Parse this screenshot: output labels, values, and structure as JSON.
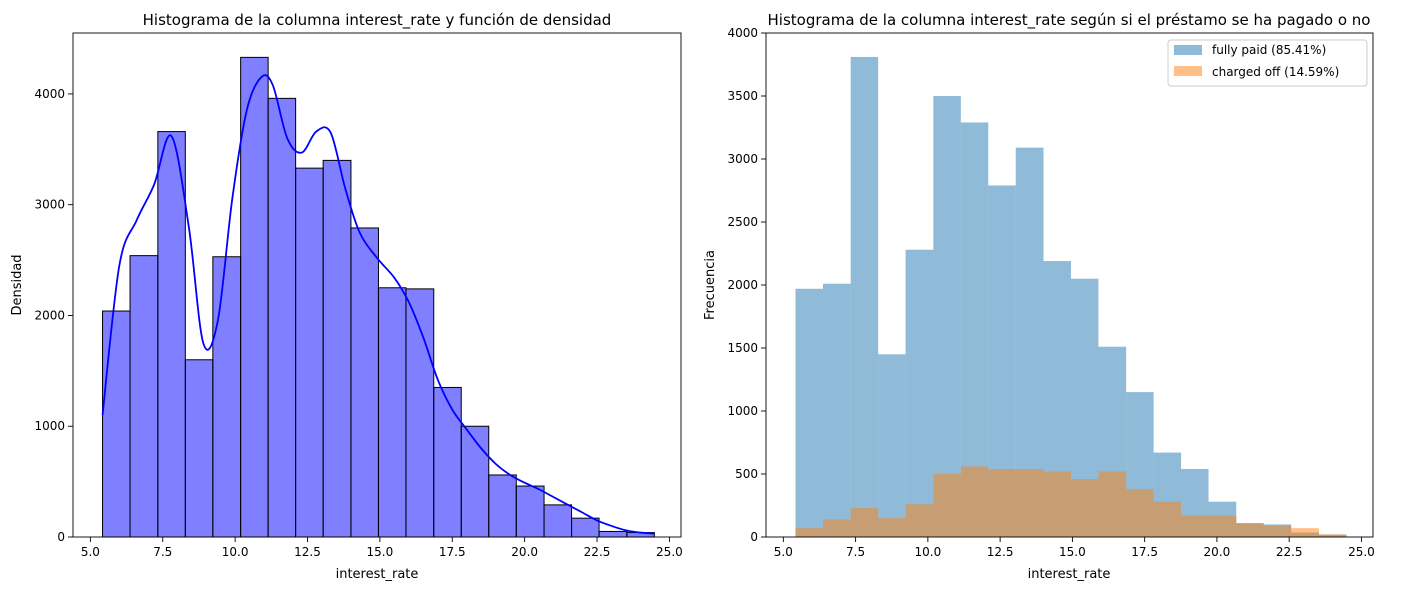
{
  "chart_data": [
    {
      "type": "bar",
      "title": "Histograma de la columna interest_rate y función de densidad",
      "xlabel": "interest_rate",
      "ylabel": "Densidad",
      "xlim": [
        4.4,
        25.4
      ],
      "ylim": [
        0,
        4550
      ],
      "xticks": [
        5.0,
        7.5,
        10.0,
        12.5,
        15.0,
        17.5,
        20.0,
        22.5,
        25.0
      ],
      "xtick_labels": [
        "5.0",
        "7.5",
        "10.0",
        "12.5",
        "15.0",
        "17.5",
        "20.0",
        "22.5",
        "25.0"
      ],
      "yticks": [
        0,
        1000,
        2000,
        3000,
        4000
      ],
      "ytick_labels": [
        "0",
        "1000",
        "2000",
        "3000",
        "4000"
      ],
      "grid": false,
      "bin_edges": [
        5.42,
        6.37,
        7.33,
        8.28,
        9.23,
        10.19,
        11.14,
        12.09,
        13.04,
        14.0,
        14.95,
        15.9,
        16.86,
        17.81,
        18.76,
        19.71,
        20.67,
        21.62,
        22.57,
        23.53,
        24.48
      ],
      "values": [
        2040,
        2540,
        3660,
        1600,
        2530,
        4330,
        3960,
        3330,
        3400,
        2790,
        2250,
        2240,
        1350,
        1000,
        560,
        460,
        290,
        170,
        50,
        40
      ],
      "color": "#0000ff",
      "bar_opacity": 0.5,
      "edge_color": "#000000",
      "kde": {
        "color": "#0000ff",
        "x": [
          5.42,
          6.0,
          6.6,
          7.2,
          7.8,
          8.4,
          8.9,
          9.4,
          9.9,
          10.4,
          10.9,
          11.3,
          11.8,
          12.3,
          12.8,
          13.3,
          13.8,
          14.3,
          14.9,
          15.5,
          16.0,
          16.5,
          17.0,
          17.5,
          18.0,
          18.5,
          19.0,
          19.5,
          20.0,
          20.5,
          21.0,
          21.5,
          22.0,
          22.5,
          23.0,
          23.5,
          24.0,
          24.48
        ],
        "y": [
          1100,
          2450,
          2860,
          3180,
          3620,
          2800,
          1750,
          1950,
          3050,
          3850,
          4150,
          4080,
          3600,
          3470,
          3660,
          3650,
          3150,
          2750,
          2520,
          2340,
          2120,
          1800,
          1420,
          1150,
          970,
          800,
          660,
          560,
          490,
          430,
          360,
          290,
          220,
          150,
          100,
          60,
          40,
          30
        ]
      }
    },
    {
      "type": "bar",
      "title": "Histograma de la columna interest_rate según si el préstamo se ha pagado o no",
      "xlabel": "interest_rate",
      "ylabel": "Frecuencia",
      "xlim": [
        4.4,
        25.4
      ],
      "ylim": [
        0,
        4000
      ],
      "xticks": [
        5.0,
        7.5,
        10.0,
        12.5,
        15.0,
        17.5,
        20.0,
        22.5,
        25.0
      ],
      "xtick_labels": [
        "5.0",
        "7.5",
        "10.0",
        "12.5",
        "15.0",
        "17.5",
        "20.0",
        "22.5",
        "25.0"
      ],
      "yticks": [
        0,
        500,
        1000,
        1500,
        2000,
        2500,
        3000,
        3500,
        4000
      ],
      "ytick_labels": [
        "0",
        "500",
        "1000",
        "1500",
        "2000",
        "2500",
        "3000",
        "3500",
        "4000"
      ],
      "grid": false,
      "legend_position": "top-right",
      "series": [
        {
          "name": "fully paid (85.41%)",
          "color": "#1f77b4",
          "opacity": 0.5,
          "bin_edges": [
            5.42,
            6.37,
            7.33,
            8.28,
            9.23,
            10.19,
            11.14,
            12.09,
            13.04,
            14.0,
            14.95,
            15.9,
            16.86,
            17.81,
            18.76,
            19.71,
            20.67,
            21.62,
            22.57,
            23.53,
            24.48
          ],
          "values": [
            1970,
            2010,
            3810,
            1450,
            2280,
            3500,
            3290,
            2790,
            3090,
            2190,
            2050,
            1510,
            1150,
            670,
            540,
            280,
            110,
            100,
            35,
            20
          ]
        },
        {
          "name": "charged off (14.59%)",
          "color": "#ff7f0e",
          "opacity": 0.5,
          "bin_edges": [
            5.42,
            6.37,
            7.33,
            8.28,
            9.23,
            10.19,
            11.14,
            12.09,
            13.04,
            14.0,
            14.95,
            15.9,
            16.86,
            17.81,
            18.76,
            19.71,
            20.67,
            21.62,
            22.57,
            23.53,
            24.48
          ],
          "values": [
            70,
            140,
            230,
            150,
            260,
            500,
            560,
            540,
            540,
            520,
            460,
            520,
            380,
            280,
            170,
            170,
            110,
            90,
            70,
            20
          ]
        }
      ]
    }
  ]
}
